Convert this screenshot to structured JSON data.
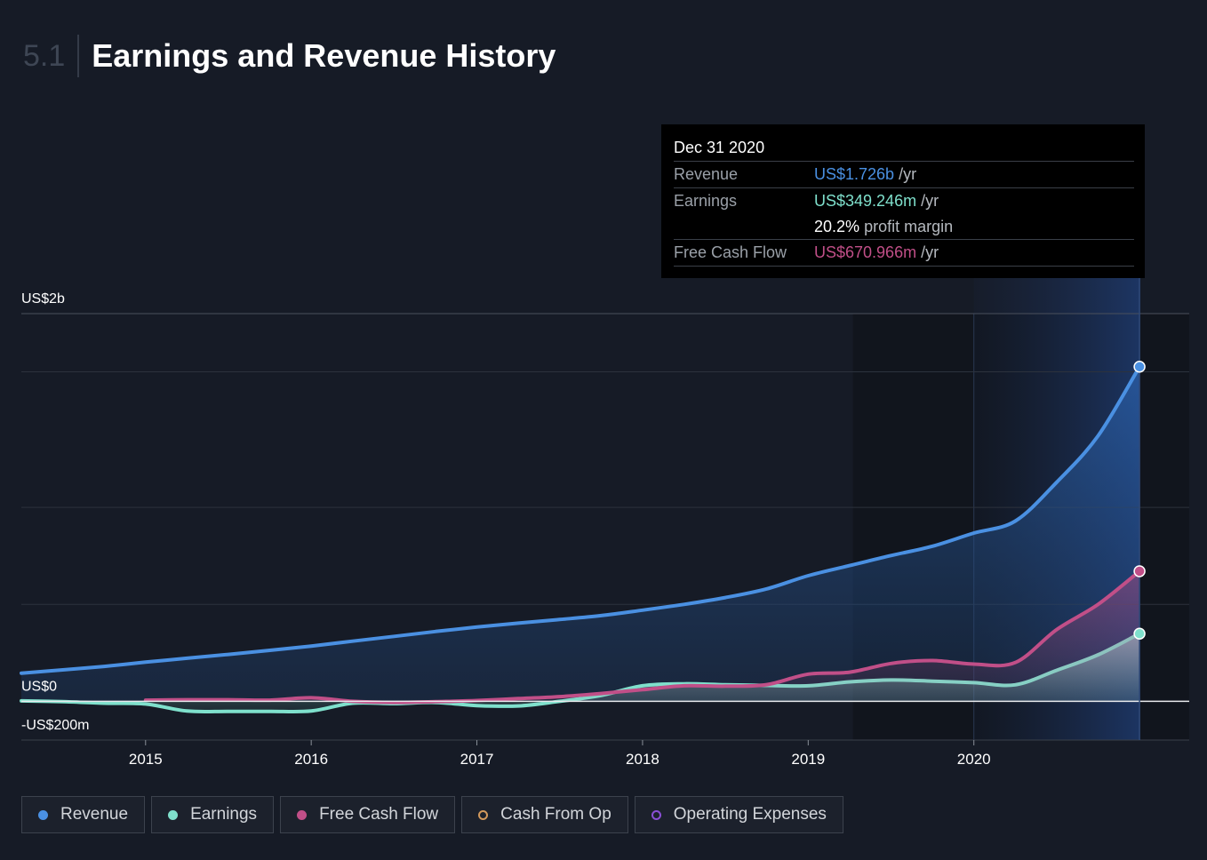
{
  "header": {
    "section_number": "5.1",
    "title": "Earnings and Revenue History"
  },
  "tooltip": {
    "date": "Dec 31 2020",
    "revenue_label": "Revenue",
    "revenue_value": "US$1.726b",
    "earnings_label": "Earnings",
    "earnings_value": "US$349.246m",
    "margin_value": "20.2%",
    "margin_text": "profit margin",
    "fcf_label": "Free Cash Flow",
    "fcf_value": "US$670.966m",
    "per_year": "/yr"
  },
  "colors": {
    "revenue": "#4a90e2",
    "earnings": "#7fe0cc",
    "free_cash_flow": "#c14f88",
    "cash_from_op": "#d2995c",
    "operating_expenses": "#8a4fd6",
    "background": "#161b26"
  },
  "legend": [
    {
      "label": "Revenue",
      "color": "#4a90e2",
      "filled": true
    },
    {
      "label": "Earnings",
      "color": "#7fe0cc",
      "filled": true
    },
    {
      "label": "Free Cash Flow",
      "color": "#c14f88",
      "filled": true
    },
    {
      "label": "Cash From Op",
      "color": "#d2995c",
      "filled": false
    },
    {
      "label": "Operating Expenses",
      "color": "#8a4fd6",
      "filled": false
    }
  ],
  "chart_data": {
    "type": "area",
    "title": "Earnings and Revenue History",
    "y_tick_labels": [
      {
        "value": 2000,
        "label": "US$2b"
      },
      {
        "value": 0,
        "label": "US$0"
      },
      {
        "value": -200,
        "label": "-US$200m"
      }
    ],
    "ylim": [
      -200,
      2000
    ],
    "gridlines": [
      1700,
      1000,
      500
    ],
    "xlim": [
      2014.25,
      2021.3
    ],
    "x_ticks": [
      2015,
      2016,
      2017,
      2018,
      2019,
      2020
    ],
    "highlight": {
      "forecast_shade_start": 2019.27,
      "selected_range": [
        2020.0,
        2021.0
      ],
      "selected_point": 2021.0
    },
    "series": [
      {
        "name": "Revenue",
        "color": "#4a90e2",
        "x": [
          2014.25,
          2014.5,
          2014.75,
          2015.0,
          2015.25,
          2015.5,
          2015.75,
          2016.0,
          2016.25,
          2016.5,
          2016.75,
          2017.0,
          2017.25,
          2017.5,
          2017.75,
          2018.0,
          2018.25,
          2018.5,
          2018.75,
          2019.0,
          2019.25,
          2019.5,
          2019.75,
          2020.0,
          2020.25,
          2020.5,
          2020.75,
          2021.0
        ],
        "y": [
          145,
          162,
          180,
          202,
          222,
          242,
          263,
          285,
          310,
          335,
          360,
          383,
          403,
          422,
          442,
          470,
          500,
          535,
          580,
          648,
          700,
          752,
          800,
          868,
          930,
          1130,
          1370,
          1726
        ]
      },
      {
        "name": "Earnings",
        "color": "#7fe0cc",
        "x": [
          2014.25,
          2014.5,
          2014.75,
          2015.0,
          2015.25,
          2015.5,
          2015.75,
          2016.0,
          2016.25,
          2016.5,
          2016.75,
          2017.0,
          2017.25,
          2017.5,
          2017.75,
          2018.0,
          2018.25,
          2018.5,
          2018.75,
          2019.0,
          2019.25,
          2019.5,
          2019.75,
          2020.0,
          2020.25,
          2020.5,
          2020.75,
          2021.0
        ],
        "y": [
          2,
          -2,
          -10,
          -14,
          -50,
          -52,
          -52,
          -50,
          -10,
          -12,
          -6,
          -22,
          -24,
          0,
          30,
          80,
          90,
          85,
          82,
          80,
          100,
          110,
          104,
          96,
          85,
          160,
          240,
          349
        ]
      },
      {
        "name": "Free Cash Flow",
        "color": "#c14f88",
        "x": [
          2015.0,
          2015.25,
          2015.5,
          2015.75,
          2016.0,
          2016.25,
          2016.5,
          2016.75,
          2017.0,
          2017.25,
          2017.5,
          2017.75,
          2018.0,
          2018.25,
          2018.5,
          2018.75,
          2019.0,
          2019.25,
          2019.5,
          2019.75,
          2020.0,
          2020.25,
          2020.5,
          2020.75,
          2021.0
        ],
        "y": [
          6,
          8,
          8,
          6,
          18,
          0,
          -6,
          -2,
          4,
          14,
          24,
          40,
          60,
          80,
          78,
          86,
          140,
          150,
          195,
          210,
          192,
          200,
          370,
          500,
          671
        ]
      }
    ]
  }
}
